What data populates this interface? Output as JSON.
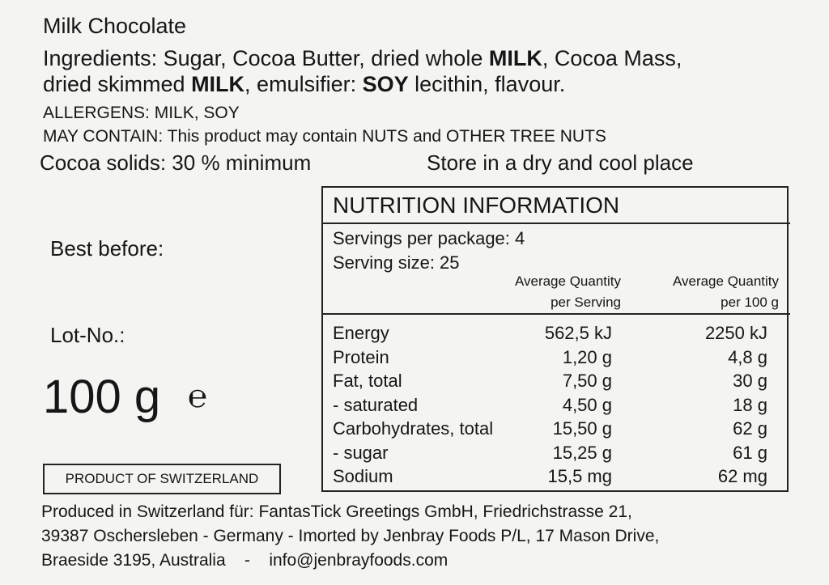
{
  "product_name": "Milk Chocolate",
  "ingredients_line1": [
    {
      "text": "Ingredients: Sugar, Cocoa Butter, dried whole ",
      "bold": false
    },
    {
      "text": "MILK",
      "bold": true
    },
    {
      "text": ", Cocoa Mass,",
      "bold": false
    }
  ],
  "ingredients_line2": [
    {
      "text": "dried skimmed ",
      "bold": false
    },
    {
      "text": "MILK",
      "bold": true
    },
    {
      "text": ", emulsifier: ",
      "bold": false
    },
    {
      "text": "SOY",
      "bold": true
    },
    {
      "text": " lecithin, flavour.",
      "bold": false
    }
  ],
  "allergens": "ALLERGENS: MILK, SOY",
  "may_contain": "MAY CONTAIN: This product may contain NUTS and OTHER TREE NUTS",
  "cocoa_solids": "Cocoa solids: 30 % minimum",
  "storage": "Store in a dry and cool place",
  "best_before_label": "Best before:",
  "lot_label": "Lot-No.:",
  "net_weight": "100 g",
  "estimated_sign": "℮",
  "origin_box": "PRODUCT OF SWITZERLAND",
  "nutrition": {
    "title": "NUTRITION INFORMATION",
    "servings_per_package": "Servings per package: 4",
    "serving_size": "Serving size: 25",
    "col1_header": [
      "Average Quantity",
      "per Serving"
    ],
    "col2_header": [
      "Average Quantity",
      "per 100 g"
    ],
    "rows": [
      {
        "name": "Energy",
        "per_serving": "562,5 kJ",
        "per_100g": "2250 kJ"
      },
      {
        "name": "Protein",
        "per_serving": "1,20 g",
        "per_100g": "4,8 g"
      },
      {
        "name": "Fat, total",
        "per_serving": "7,50 g",
        "per_100g": "30 g"
      },
      {
        "name": "- saturated",
        "per_serving": "4,50 g",
        "per_100g": "18 g"
      },
      {
        "name": "Carbohydrates, total",
        "per_serving": "15,50 g",
        "per_100g": "62 g"
      },
      {
        "name": "- sugar",
        "per_serving": "15,25 g",
        "per_100g": "61 g"
      },
      {
        "name": "Sodium",
        "per_serving": "15,5 mg",
        "per_100g": "62 mg"
      }
    ]
  },
  "footer": [
    "Produced in Switzerland für: FantasTick Greetings GmbH, Friedrichstrasse 21,",
    "39387 Oschersleben - Germany - Imorted by Jenbray Foods P/L, 17 Mason Drive,",
    "Braeside 3195, Australia    -    info@jenbrayfoods.com"
  ]
}
